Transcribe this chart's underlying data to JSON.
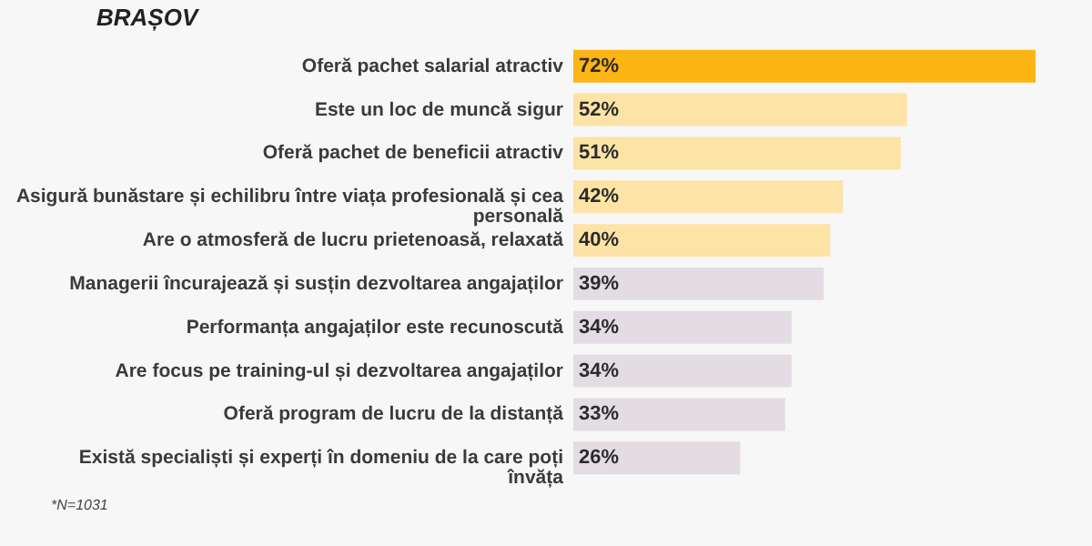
{
  "chart_data": {
    "type": "bar",
    "orientation": "horizontal",
    "title": "BRAȘOV",
    "categories": [
      "Oferă pachet salarial atractiv",
      "Este un loc de muncă sigur",
      "Oferă pachet de beneficii atractiv",
      "Asigură bunăstare și echilibru între viața profesională și cea personală",
      "Are o atmosferă de lucru prietenoasă, relaxată",
      "Managerii încurajează și susțin dezvoltarea angajaților",
      "Performanța angajaților este recunoscută",
      "Are focus pe training-ul și dezvoltarea angajaților",
      "Oferă program de lucru de la distanță",
      "Există specialiști și experți în domeniu de la care poți învăța"
    ],
    "values": [
      72,
      52,
      51,
      42,
      40,
      39,
      34,
      34,
      33,
      26
    ],
    "colors": [
      "#fdb515",
      "#fde4a6",
      "#fde4a6",
      "#fde4a6",
      "#fde4a6",
      "#e3dce2",
      "#e3dce2",
      "#e3dce2",
      "#e3dce2",
      "#e3dce2"
    ],
    "value_labels": [
      "72%",
      "52%",
      "51%",
      "42%",
      "40%",
      "39%",
      "34%",
      "34%",
      "33%",
      "26%"
    ],
    "annotations": [
      "*N=1031"
    ]
  }
}
